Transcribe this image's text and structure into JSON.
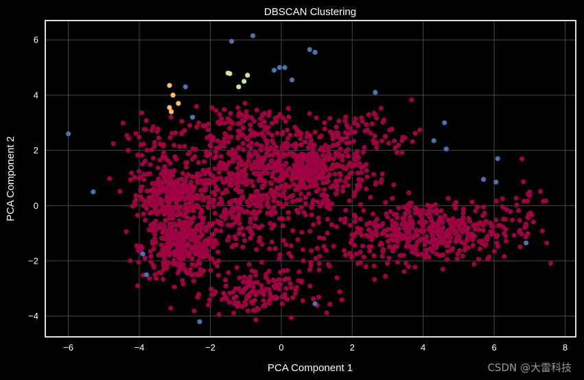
{
  "chart_data": {
    "type": "scatter",
    "title": "DBSCAN Clustering",
    "xlabel": "PCA Component 1",
    "ylabel": "PCA Component 2",
    "xlim": [
      -6.65,
      8.3
    ],
    "ylim": [
      -4.75,
      6.7
    ],
    "xticks": [
      -6,
      -4,
      -2,
      0,
      2,
      4,
      6,
      8
    ],
    "yticks": [
      -4,
      -2,
      0,
      2,
      4,
      6
    ],
    "xtick_labels": [
      "−6",
      "−4",
      "−2",
      "0",
      "2",
      "4",
      "6",
      "8"
    ],
    "ytick_labels": [
      "−4",
      "−2",
      "0",
      "2",
      "4",
      "6"
    ],
    "grid": true,
    "colors": {
      "background": "#000000",
      "noise": "#4c72b0",
      "main_cluster": "#9e0142",
      "cluster_orange": "#fdbf6f",
      "cluster_green": "#c5e8a0",
      "grid": "#4a4a4a",
      "text": "#ffffff"
    },
    "series": [
      {
        "color": "#4c72b0",
        "points": [
          [
            -6.0,
            2.6
          ],
          [
            -5.3,
            0.5
          ],
          [
            -3.9,
            -1.75
          ],
          [
            -3.8,
            -2.5
          ],
          [
            -2.7,
            4.3
          ],
          [
            -2.5,
            3.2
          ],
          [
            -2.3,
            -4.2
          ],
          [
            -1.4,
            5.95
          ],
          [
            -0.8,
            6.15
          ],
          [
            -0.2,
            4.9
          ],
          [
            -0.05,
            5.0
          ],
          [
            0.1,
            5.0
          ],
          [
            0.3,
            4.55
          ],
          [
            0.8,
            5.65
          ],
          [
            0.95,
            5.55
          ],
          [
            0.95,
            -3.55
          ],
          [
            2.65,
            4.1
          ],
          [
            4.3,
            2.35
          ],
          [
            4.6,
            3.0
          ],
          [
            4.65,
            2.05
          ],
          [
            5.7,
            0.95
          ],
          [
            6.05,
            0.85
          ],
          [
            6.1,
            1.7
          ],
          [
            6.9,
            -1.35
          ]
        ]
      },
      {
        "color": "#fdbf6f",
        "points": [
          [
            -3.15,
            4.35
          ],
          [
            -3.05,
            4.0
          ],
          [
            -2.9,
            3.7
          ],
          [
            -3.15,
            3.55
          ],
          [
            -3.1,
            3.4
          ]
        ]
      },
      {
        "color": "#c5e8a0",
        "points": [
          [
            -1.5,
            4.8
          ],
          [
            -1.45,
            4.78
          ],
          [
            -1.2,
            4.3
          ],
          [
            -1.05,
            4.5
          ],
          [
            -0.95,
            4.72
          ]
        ]
      },
      {
        "color": "#9e0142",
        "clusters": [
          {
            "cx": -3.1,
            "cy": 0.4,
            "sx": 0.5,
            "sy": 0.5,
            "n": 280
          },
          {
            "cx": -2.8,
            "cy": -1.5,
            "sx": 0.55,
            "sy": 0.55,
            "n": 330
          },
          {
            "cx": -1.6,
            "cy": 0.9,
            "sx": 0.9,
            "sy": 1.2,
            "n": 200
          },
          {
            "cx": 0.3,
            "cy": 1.5,
            "sx": 1.1,
            "sy": 0.7,
            "n": 320
          },
          {
            "cx": 1.2,
            "cy": 1.3,
            "sx": 0.6,
            "sy": 0.5,
            "n": 130
          },
          {
            "cx": -0.9,
            "cy": 0.1,
            "sx": 1.0,
            "sy": 1.1,
            "n": 180
          },
          {
            "cx": -0.8,
            "cy": -3.2,
            "sx": 0.65,
            "sy": 0.4,
            "n": 130
          },
          {
            "cx": 4.2,
            "cy": -0.9,
            "sx": 1.2,
            "sy": 0.55,
            "n": 420
          },
          {
            "cx": 2.4,
            "cy": 2.6,
            "sx": 0.8,
            "sy": 0.45,
            "n": 70
          },
          {
            "cx": 1.1,
            "cy": -1.1,
            "sx": 1.1,
            "sy": 1.1,
            "n": 90
          },
          {
            "cx": -1.2,
            "cy": 3.0,
            "sx": 0.8,
            "sy": 0.45,
            "n": 70
          },
          {
            "cx": -3.6,
            "cy": 2.3,
            "sx": 0.5,
            "sy": 0.5,
            "n": 40
          },
          {
            "cx": 6.6,
            "cy": -0.1,
            "sx": 0.5,
            "sy": 0.5,
            "n": 30
          }
        ]
      }
    ]
  },
  "watermark": "CSDN @大雷科技"
}
